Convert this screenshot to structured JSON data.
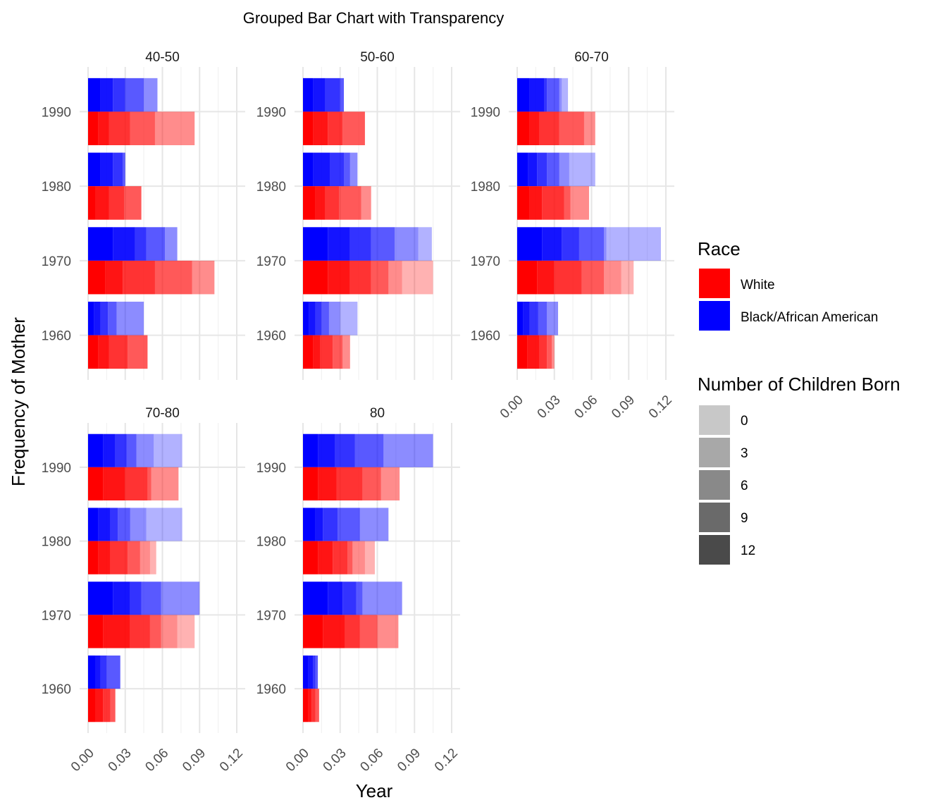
{
  "chart_data": {
    "type": "bar",
    "orientation": "horizontal",
    "title": "Grouped Bar Chart with Transparency",
    "xlabel": "Year",
    "ylabel": "Frequency of Mother",
    "xlim": [
      0,
      0.12
    ],
    "x_ticks": [
      "0.00",
      "0.03",
      "0.06",
      "0.09",
      "0.12"
    ],
    "categories": [
      "1960",
      "1970",
      "1980",
      "1990"
    ],
    "facets": [
      "40-50",
      "50-60",
      "60-70",
      "70-80",
      "80"
    ],
    "legend_race": {
      "title": "Race",
      "items": [
        {
          "label": "White",
          "color": "#FF0000"
        },
        {
          "label": "Black/African American",
          "color": "#0000FF"
        }
      ]
    },
    "legend_children": {
      "title": "Number of Children Born",
      "items": [
        {
          "label": "0",
          "color": "#C8C8C8"
        },
        {
          "label": "3",
          "color": "#A8A8A8"
        },
        {
          "label": "6",
          "color": "#898989"
        },
        {
          "label": "9",
          "color": "#6A6A6A"
        },
        {
          "label": "12",
          "color": "#4A4A4A"
        }
      ]
    },
    "segment_alpha": [
      1.0,
      0.92,
      0.8,
      0.65,
      0.45,
      0.3
    ],
    "panels": [
      {
        "facet": "40-50",
        "White": {
          "1960": [
            0.008,
            0.017,
            0.032,
            0.048
          ],
          "1970": [
            0.014,
            0.028,
            0.054,
            0.084,
            0.102
          ],
          "1980": [
            0.006,
            0.017,
            0.029,
            0.043
          ],
          "1990": [
            0.008,
            0.017,
            0.034,
            0.054,
            0.086
          ]
        },
        "Black/African American": {
          "1960": [
            0.005,
            0.01,
            0.016,
            0.023,
            0.045
          ],
          "1970": [
            0.02,
            0.038,
            0.047,
            0.062,
            0.072
          ],
          "1980": [
            0.01,
            0.02,
            0.028,
            0.03
          ],
          "1990": [
            0.01,
            0.02,
            0.03,
            0.045,
            0.056
          ]
        }
      },
      {
        "facet": "50-60",
        "White": {
          "1960": [
            0.008,
            0.014,
            0.024,
            0.032,
            0.038
          ],
          "1970": [
            0.02,
            0.038,
            0.055,
            0.069,
            0.08,
            0.105
          ],
          "1980": [
            0.01,
            0.018,
            0.029,
            0.047,
            0.055
          ],
          "1990": [
            0.008,
            0.02,
            0.032,
            0.05
          ]
        },
        "Black/African American": {
          "1960": [
            0.005,
            0.01,
            0.015,
            0.021,
            0.03,
            0.044
          ],
          "1970": [
            0.02,
            0.038,
            0.055,
            0.074,
            0.093,
            0.104
          ],
          "1980": [
            0.008,
            0.022,
            0.033,
            0.038,
            0.044
          ],
          "1990": [
            0.008,
            0.018,
            0.03,
            0.033
          ]
        }
      },
      {
        "facet": "60-70",
        "White": {
          "1960": [
            0.008,
            0.018,
            0.024,
            0.028,
            0.03
          ],
          "1970": [
            0.016,
            0.03,
            0.052,
            0.07,
            0.084,
            0.094
          ],
          "1980": [
            0.01,
            0.02,
            0.038,
            0.043,
            0.058
          ],
          "1990": [
            0.01,
            0.018,
            0.034,
            0.054,
            0.063
          ]
        },
        "Black/African American": {
          "1960": [
            0.005,
            0.01,
            0.017,
            0.024,
            0.033
          ],
          "1970": [
            0.02,
            0.036,
            0.05,
            0.07,
            0.072,
            0.116
          ],
          "1980": [
            0.009,
            0.016,
            0.024,
            0.034,
            0.042,
            0.063
          ],
          "1990": [
            0.01,
            0.022,
            0.024,
            0.034,
            0.036,
            0.041
          ]
        }
      },
      {
        "facet": "70-80",
        "White": {
          "1960": [
            0.006,
            0.012,
            0.018,
            0.022
          ],
          "1970": [
            0.012,
            0.034,
            0.05,
            0.059,
            0.072,
            0.086
          ],
          "1980": [
            0.008,
            0.018,
            0.032,
            0.042,
            0.05,
            0.055
          ],
          "1990": [
            0.012,
            0.03,
            0.048,
            0.051,
            0.073
          ]
        },
        "Black/African American": {
          "1960": [
            0.006,
            0.01,
            0.015,
            0.026
          ],
          "1970": [
            0.02,
            0.034,
            0.043,
            0.059,
            0.09
          ],
          "1980": [
            0.008,
            0.018,
            0.024,
            0.034,
            0.047,
            0.076
          ],
          "1990": [
            0.012,
            0.022,
            0.031,
            0.039,
            0.053,
            0.076
          ]
        }
      },
      {
        "facet": "80",
        "White": {
          "1960": [
            0.004,
            0.007,
            0.01,
            0.013
          ],
          "1970": [
            0.016,
            0.034,
            0.046,
            0.06,
            0.077
          ],
          "1980": [
            0.012,
            0.024,
            0.036,
            0.04,
            0.05,
            0.058
          ],
          "1990": [
            0.012,
            0.027,
            0.048,
            0.063,
            0.078
          ]
        },
        "Black/African American": {
          "1960": [
            0.004,
            0.008,
            0.01,
            0.012
          ],
          "1970": [
            0.02,
            0.032,
            0.043,
            0.048,
            0.08
          ],
          "1980": [
            0.01,
            0.016,
            0.028,
            0.046,
            0.069
          ],
          "1990": [
            0.012,
            0.026,
            0.042,
            0.065,
            0.105
          ]
        }
      }
    ]
  }
}
